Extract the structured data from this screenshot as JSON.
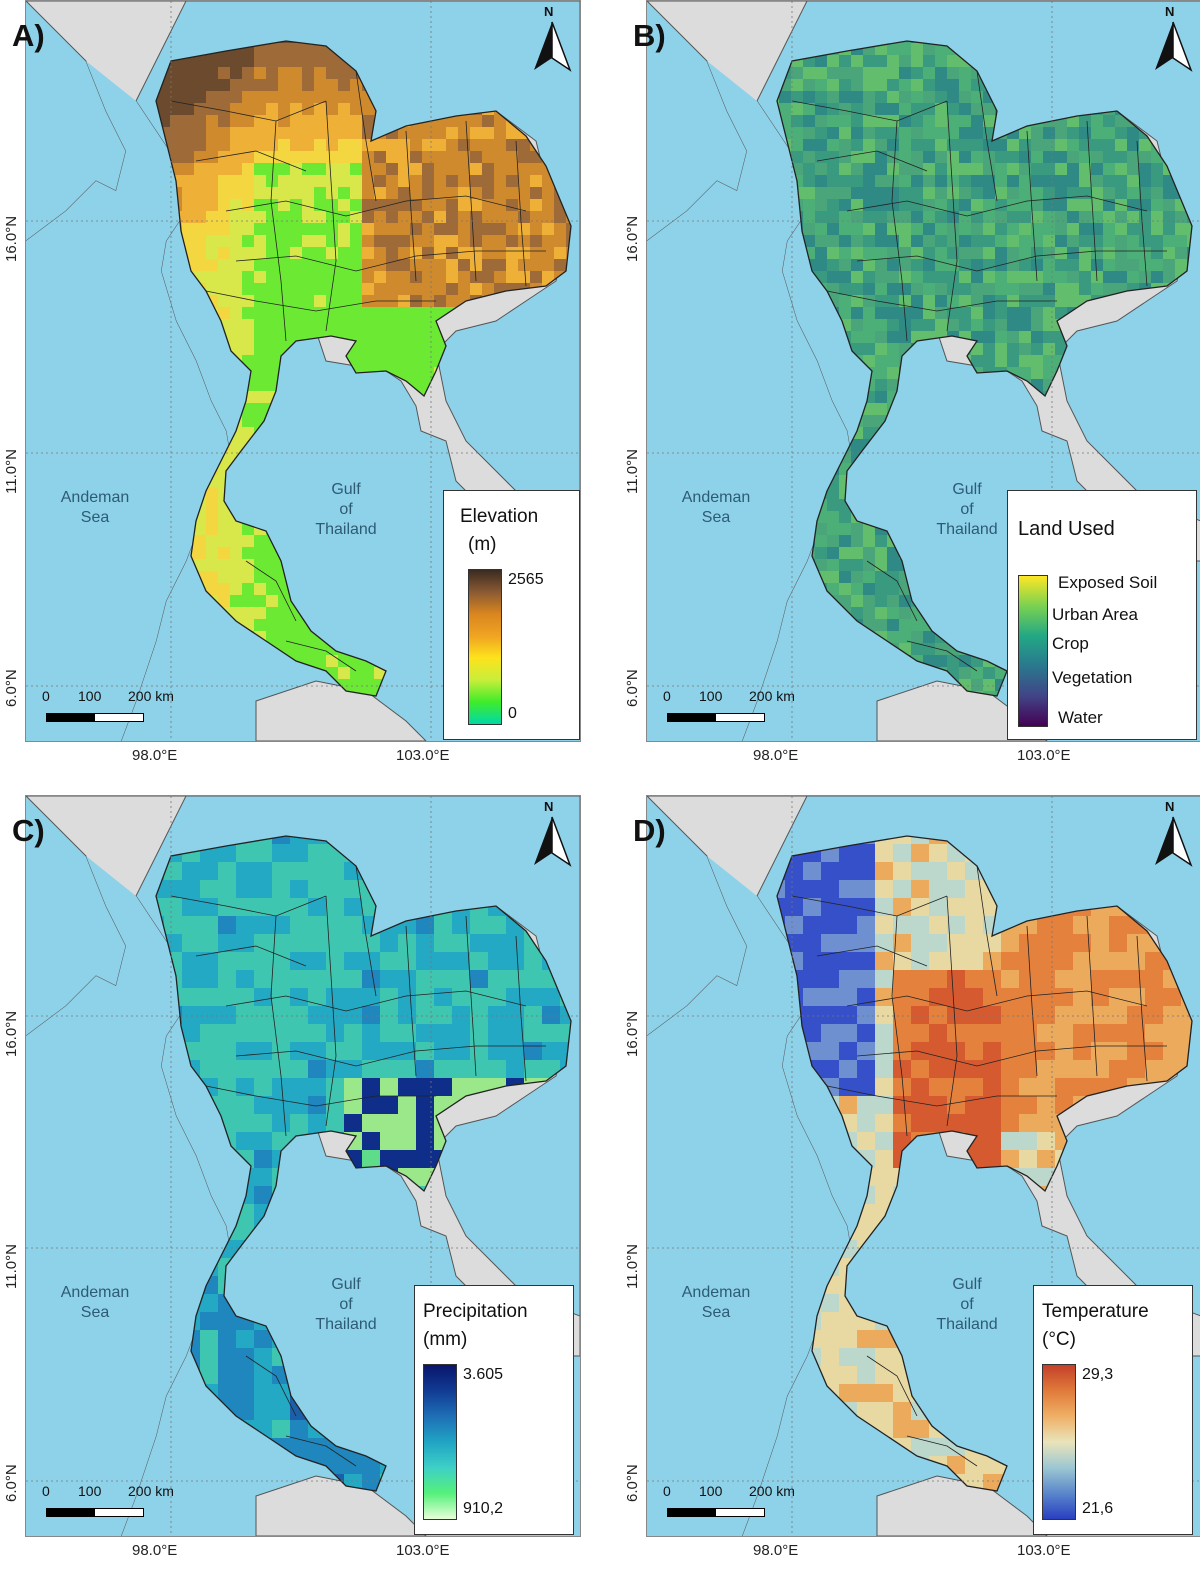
{
  "figure": {
    "panels": [
      {
        "letter": "A)",
        "north": "N",
        "lat_labels": [
          "16.0°N",
          "11.0°N",
          "6.0°N"
        ],
        "lon_labels": [
          "98.0°E",
          "103.0°E"
        ],
        "seas": {
          "andaman": "Andeman Sea",
          "gulf": "Gulf of Thailand"
        },
        "scale": {
          "ticks": [
            "0",
            "100",
            "200 km"
          ]
        },
        "legend": {
          "title_line1": "Elevation",
          "title_line2": "(m)",
          "max": "2565",
          "min": "0",
          "ramp_colors": [
            "#3a2b20",
            "#8a5a33",
            "#d9861f",
            "#f0a422",
            "#fde31c",
            "#c8ee3a",
            "#3fec2a",
            "#00d8a8"
          ]
        },
        "fill_palette": [
          "#6b4a2e",
          "#9d6a38",
          "#cf8a2e",
          "#efb038",
          "#f4d640",
          "#d8e84a",
          "#6cea33",
          "#2ed86a"
        ]
      },
      {
        "letter": "B)",
        "north": "N",
        "lat_labels": [
          "16.0°N",
          "11.0°N",
          "6.0°N"
        ],
        "lon_labels": [
          "98.0°E",
          "103.0°E"
        ],
        "seas": {
          "andaman": "Andeman Sea",
          "gulf": "Gulf of Thailand"
        },
        "scale": {
          "ticks": [
            "0",
            "100",
            "200 km"
          ]
        },
        "legend": {
          "title": "Land Used",
          "classes": [
            "Exposed Soil",
            "Urban Area",
            "Crop",
            "Vegetation",
            "Water"
          ],
          "ramp_colors": [
            "#fde725",
            "#7ad151",
            "#22a884",
            "#2a788e",
            "#414487",
            "#440154"
          ]
        },
        "fill_palette": [
          "#3a9a80",
          "#4caf78",
          "#62bd6c",
          "#2f8a85",
          "#4aa57a"
        ]
      },
      {
        "letter": "C)",
        "north": "N",
        "lat_labels": [
          "16.0°N",
          "11.0°N",
          "6.0°N"
        ],
        "lon_labels": [
          "98.0°E",
          "103.0°E"
        ],
        "seas": {
          "andaman": "Andeman Sea",
          "gulf": "Gulf of Thailand"
        },
        "scale": {
          "ticks": [
            "0",
            "100",
            "200 km"
          ]
        },
        "legend": {
          "title_line1": "Precipitation",
          "title_line2": "(mm)",
          "max": "3.605",
          "min": "910,2",
          "ramp_colors": [
            "#08166b",
            "#113b93",
            "#1e6fb5",
            "#20a4c4",
            "#3ed0c6",
            "#55f07a",
            "#e8ffd8"
          ]
        },
        "fill_palette": [
          "#1a5fa8",
          "#1f86be",
          "#23a9c4",
          "#3fc6b0",
          "#5fdc8a",
          "#9ae88a",
          "#0e2e8a"
        ]
      },
      {
        "letter": "D)",
        "north": "N",
        "lat_labels": [
          "16.0°N",
          "11.0°N",
          "6.0°N"
        ],
        "lon_labels": [
          "98.0°E",
          "103.0°E"
        ],
        "seas": {
          "andaman": "Andeman Sea",
          "gulf": "Gulf of Thailand"
        },
        "scale": {
          "ticks": [
            "0",
            "100",
            "200 km"
          ]
        },
        "legend": {
          "title_line1": "Temperature",
          "title_line2": "(°C)",
          "max": "29,3",
          "min": "21,6",
          "ramp_colors": [
            "#c4402a",
            "#e07a3a",
            "#efb066",
            "#e9e4ba",
            "#9cc7d2",
            "#5a86cc",
            "#2a3fc0"
          ]
        },
        "fill_palette": [
          "#d55a30",
          "#e3813d",
          "#ecaa5d",
          "#e8d9a3",
          "#bcd7cc",
          "#6e8fd0",
          "#3550c8"
        ]
      }
    ]
  }
}
